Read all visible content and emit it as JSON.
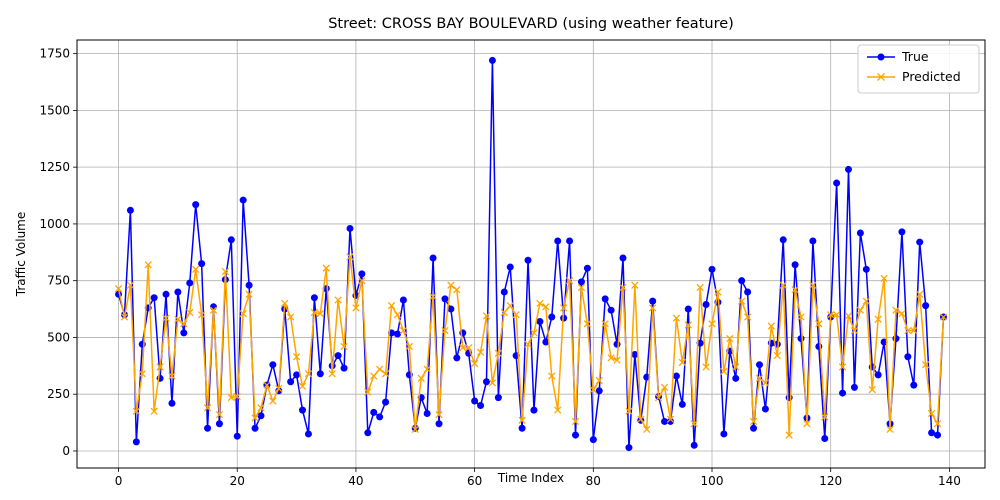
{
  "chart_data": {
    "type": "line",
    "title": "Street: CROSS BAY BOULEVARD (using weather feature)",
    "xlabel": "Time Index",
    "ylabel": "Traffic Volume",
    "xlim": [
      -7,
      146
    ],
    "ylim": [
      -75,
      1810
    ],
    "xticks": [
      0,
      20,
      40,
      60,
      80,
      100,
      120,
      140
    ],
    "yticks": [
      0,
      250,
      500,
      750,
      1000,
      1250,
      1500,
      1750
    ],
    "grid": true,
    "legend_position": "top-right",
    "series": [
      {
        "name": "True",
        "color": "#0000ff",
        "marker": "circle",
        "values": [
          690,
          600,
          1060,
          40,
          470,
          630,
          675,
          320,
          690,
          210,
          700,
          520,
          740,
          1085,
          825,
          100,
          635,
          120,
          755,
          930,
          65,
          1105,
          730,
          100,
          155,
          290,
          380,
          265,
          625,
          305,
          335,
          180,
          75,
          675,
          340,
          715,
          375,
          420,
          365,
          980,
          685,
          780,
          80,
          170,
          150,
          215,
          520,
          515,
          665,
          335,
          100,
          235,
          165,
          850,
          120,
          670,
          625,
          410,
          520,
          430,
          220,
          200,
          305,
          1720,
          235,
          700,
          810,
          420,
          100,
          840,
          180,
          570,
          480,
          590,
          925,
          585,
          925,
          70,
          745,
          805,
          50,
          265,
          670,
          620,
          470,
          850,
          15,
          425,
          135,
          325,
          660,
          240,
          130,
          130,
          330,
          205,
          625,
          25,
          475,
          645,
          800,
          655,
          75,
          440,
          320,
          750,
          700,
          100,
          380,
          185,
          475,
          470,
          930,
          235,
          820,
          495,
          145,
          925,
          460,
          55,
          590,
          1180,
          255,
          1240,
          280,
          960,
          800,
          370,
          335,
          480,
          120,
          495,
          965,
          415,
          290,
          920,
          640,
          80,
          70,
          590
        ]
      },
      {
        "name": "Predicted",
        "color": "#ffa500",
        "marker": "x",
        "values": [
          715,
          590,
          730,
          175,
          340,
          820,
          175,
          370,
          585,
          330,
          580,
          560,
          610,
          800,
          600,
          190,
          620,
          160,
          790,
          235,
          240,
          605,
          690,
          145,
          190,
          290,
          220,
          275,
          650,
          590,
          415,
          285,
          340,
          610,
          605,
          805,
          340,
          665,
          460,
          855,
          630,
          750,
          260,
          330,
          360,
          340,
          640,
          600,
          530,
          460,
          95,
          320,
          360,
          680,
          160,
          530,
          730,
          710,
          455,
          455,
          385,
          435,
          595,
          300,
          430,
          610,
          640,
          600,
          135,
          470,
          520,
          650,
          635,
          330,
          180,
          630,
          750,
          130,
          720,
          560,
          270,
          310,
          560,
          410,
          400,
          720,
          175,
          730,
          140,
          95,
          630,
          235,
          280,
          140,
          585,
          390,
          555,
          120,
          720,
          370,
          560,
          700,
          350,
          495,
          370,
          660,
          590,
          130,
          320,
          300,
          550,
          420,
          730,
          70,
          710,
          590,
          120,
          730,
          560,
          150,
          600,
          600,
          370,
          595,
          530,
          620,
          660,
          270,
          580,
          760,
          95,
          620,
          605,
          530,
          530,
          690,
          380,
          165,
          120,
          590
        ]
      }
    ]
  }
}
